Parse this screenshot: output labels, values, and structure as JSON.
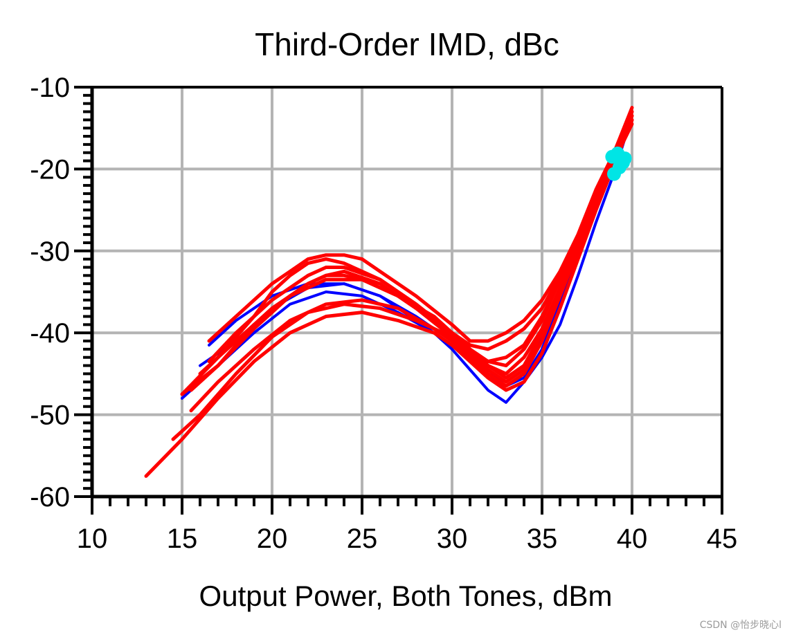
{
  "chart_data": {
    "type": "line",
    "title": "Third-Order IMD, dBc",
    "xlabel": "Output Power, Both Tones, dBm",
    "ylabel": "",
    "xlim": [
      10,
      45
    ],
    "ylim": [
      -60,
      -10
    ],
    "xticks": [
      10,
      15,
      20,
      25,
      30,
      35,
      40,
      45
    ],
    "yticks": [
      -60,
      -50,
      -40,
      -30,
      -20,
      -10
    ],
    "xtick_labels": [
      "10",
      "15",
      "20",
      "25",
      "30",
      "35",
      "40",
      "45"
    ],
    "ytick_labels": [
      "-60",
      "-50",
      "-40",
      "-30",
      "-20",
      "-10"
    ],
    "grid": true,
    "colors": {
      "blue_series": "#0000ff",
      "red_series": "#ff0000",
      "marker": "#00e5e5",
      "grid": "#b4b4b4"
    },
    "series": [
      {
        "color": "blue",
        "points": [
          [
            16.5,
            -41.5
          ],
          [
            18,
            -38.5
          ],
          [
            20,
            -35.5
          ],
          [
            22,
            -34
          ],
          [
            24,
            -34
          ],
          [
            26,
            -35.5
          ],
          [
            28,
            -38.5
          ],
          [
            30,
            -41.5
          ],
          [
            31,
            -43.5
          ],
          [
            32,
            -45.5
          ],
          [
            33,
            -46.5
          ],
          [
            34,
            -45.5
          ],
          [
            35,
            -42
          ],
          [
            36,
            -36
          ],
          [
            37,
            -30
          ],
          [
            38,
            -24
          ],
          [
            39,
            -19
          ],
          [
            40,
            -13
          ]
        ]
      },
      {
        "color": "blue",
        "points": [
          [
            15,
            -48
          ],
          [
            17,
            -44
          ],
          [
            19,
            -40
          ],
          [
            21,
            -36.5
          ],
          [
            23,
            -35
          ],
          [
            25,
            -35.5
          ],
          [
            27,
            -37.5
          ],
          [
            29,
            -40
          ],
          [
            30,
            -42
          ],
          [
            31,
            -44.5
          ],
          [
            32,
            -47
          ],
          [
            33,
            -48.5
          ],
          [
            34,
            -46
          ],
          [
            35,
            -43
          ],
          [
            36,
            -39
          ],
          [
            37,
            -33
          ],
          [
            38,
            -26.5
          ],
          [
            39,
            -20.5
          ],
          [
            40,
            -13.5
          ]
        ]
      },
      {
        "color": "blue",
        "points": [
          [
            16,
            -44
          ],
          [
            18,
            -41
          ],
          [
            20,
            -37
          ],
          [
            22,
            -34.5
          ],
          [
            24,
            -34
          ],
          [
            26,
            -35.5
          ],
          [
            28,
            -38
          ],
          [
            30,
            -41
          ],
          [
            31,
            -43
          ],
          [
            32,
            -45
          ],
          [
            33,
            -46
          ],
          [
            34,
            -44.5
          ],
          [
            35,
            -40.5
          ],
          [
            36,
            -35
          ],
          [
            37,
            -29
          ],
          [
            38,
            -23.5
          ],
          [
            39,
            -18.5
          ],
          [
            40,
            -13
          ]
        ]
      },
      {
        "color": "red",
        "points": [
          [
            16.5,
            -41
          ],
          [
            18,
            -38
          ],
          [
            20,
            -34
          ],
          [
            21,
            -32.5
          ],
          [
            22,
            -31
          ],
          [
            23,
            -30.5
          ],
          [
            24,
            -30.5
          ],
          [
            25,
            -31
          ],
          [
            26,
            -32.5
          ],
          [
            28,
            -35.5
          ],
          [
            30,
            -39
          ],
          [
            31,
            -41
          ],
          [
            32,
            -41
          ],
          [
            33,
            -40
          ],
          [
            34,
            -38.5
          ],
          [
            35,
            -36
          ],
          [
            36,
            -32.5
          ],
          [
            37,
            -28
          ],
          [
            38,
            -22.5
          ],
          [
            39,
            -18
          ],
          [
            40,
            -13
          ]
        ]
      },
      {
        "color": "red",
        "points": [
          [
            15,
            -47.5
          ],
          [
            17,
            -43
          ],
          [
            19,
            -38
          ],
          [
            20,
            -35
          ],
          [
            21,
            -33
          ],
          [
            22,
            -31.5
          ],
          [
            23,
            -31
          ],
          [
            24,
            -31.5
          ],
          [
            26,
            -33.5
          ],
          [
            28,
            -36.5
          ],
          [
            30,
            -40
          ],
          [
            31,
            -41.5
          ],
          [
            32,
            -42
          ],
          [
            33,
            -41
          ],
          [
            34,
            -39.5
          ],
          [
            35,
            -37
          ],
          [
            36,
            -33
          ],
          [
            37,
            -28.5
          ],
          [
            38,
            -23
          ],
          [
            39,
            -18
          ],
          [
            40,
            -12.5
          ]
        ]
      },
      {
        "color": "red",
        "points": [
          [
            15.5,
            -47
          ],
          [
            17,
            -44
          ],
          [
            19,
            -39.5
          ],
          [
            21,
            -35.5
          ],
          [
            22,
            -34
          ],
          [
            23,
            -33
          ],
          [
            24,
            -33
          ],
          [
            25,
            -33.5
          ],
          [
            27,
            -35.5
          ],
          [
            29,
            -38.5
          ],
          [
            30,
            -40.5
          ],
          [
            31,
            -42.5
          ],
          [
            32,
            -43.5
          ],
          [
            33,
            -43
          ],
          [
            34,
            -41.5
          ],
          [
            35,
            -38
          ],
          [
            36,
            -33.5
          ],
          [
            37,
            -28.5
          ],
          [
            38,
            -23
          ],
          [
            39,
            -18.5
          ],
          [
            40,
            -13.5
          ]
        ]
      },
      {
        "color": "red",
        "points": [
          [
            16,
            -45
          ],
          [
            18,
            -41
          ],
          [
            20,
            -37
          ],
          [
            22,
            -34
          ],
          [
            23,
            -33
          ],
          [
            24,
            -32.5
          ],
          [
            26,
            -34
          ],
          [
            28,
            -37
          ],
          [
            30,
            -40.5
          ],
          [
            31,
            -42.5
          ],
          [
            32,
            -44
          ],
          [
            33,
            -45
          ],
          [
            34,
            -43
          ],
          [
            35,
            -39.5
          ],
          [
            36,
            -34.5
          ],
          [
            37,
            -29
          ],
          [
            38,
            -23.5
          ],
          [
            39,
            -19
          ],
          [
            40,
            -14
          ]
        ]
      },
      {
        "color": "red",
        "points": [
          [
            14.5,
            -53
          ],
          [
            16,
            -50
          ],
          [
            18,
            -45
          ],
          [
            20,
            -40.5
          ],
          [
            22,
            -37.5
          ],
          [
            24,
            -36.5
          ],
          [
            26,
            -37
          ],
          [
            28,
            -38.5
          ],
          [
            30,
            -40.5
          ],
          [
            31,
            -42.5
          ],
          [
            32,
            -44.5
          ],
          [
            33,
            -46
          ],
          [
            34,
            -44.5
          ],
          [
            35,
            -40
          ],
          [
            36,
            -35
          ],
          [
            37,
            -29
          ],
          [
            38,
            -23.5
          ],
          [
            39,
            -19
          ],
          [
            40,
            -14.5
          ]
        ]
      },
      {
        "color": "red",
        "points": [
          [
            13,
            -57.5
          ],
          [
            15,
            -53
          ],
          [
            17,
            -48
          ],
          [
            19,
            -43.5
          ],
          [
            21,
            -40
          ],
          [
            23,
            -38
          ],
          [
            25,
            -37.5
          ],
          [
            27,
            -38.5
          ],
          [
            29,
            -40
          ],
          [
            30,
            -41.5
          ],
          [
            31,
            -43.5
          ],
          [
            32,
            -45.5
          ],
          [
            33,
            -47
          ],
          [
            34,
            -46
          ],
          [
            35,
            -42.5
          ],
          [
            36,
            -37
          ],
          [
            37,
            -31
          ],
          [
            38,
            -25
          ],
          [
            39,
            -19.5
          ],
          [
            40,
            -14
          ]
        ]
      },
      {
        "color": "red",
        "points": [
          [
            15.5,
            -49.5
          ],
          [
            17,
            -46
          ],
          [
            19,
            -42
          ],
          [
            21,
            -38.5
          ],
          [
            23,
            -36.5
          ],
          [
            25,
            -36
          ],
          [
            27,
            -37
          ],
          [
            29,
            -39.5
          ],
          [
            30,
            -41
          ],
          [
            31,
            -43
          ],
          [
            32,
            -45
          ],
          [
            33,
            -46.5
          ],
          [
            34,
            -45
          ],
          [
            35,
            -41
          ],
          [
            36,
            -35.5
          ],
          [
            37,
            -30
          ],
          [
            38,
            -24
          ],
          [
            39,
            -19.5
          ],
          [
            40,
            -14
          ]
        ]
      },
      {
        "color": "red",
        "points": [
          [
            15,
            -47.5
          ],
          [
            17,
            -44
          ],
          [
            19,
            -39
          ],
          [
            21,
            -35.5
          ],
          [
            23,
            -33.5
          ],
          [
            25,
            -33.5
          ],
          [
            27,
            -35.5
          ],
          [
            29,
            -38
          ],
          [
            30,
            -40
          ],
          [
            31,
            -42
          ],
          [
            32,
            -44
          ],
          [
            33,
            -45.5
          ],
          [
            34,
            -44
          ],
          [
            35,
            -40
          ],
          [
            36,
            -34.5
          ],
          [
            37,
            -29
          ],
          [
            38,
            -23.5
          ],
          [
            39,
            -19
          ],
          [
            40,
            -13.5
          ]
        ]
      },
      {
        "color": "red",
        "points": [
          [
            16.5,
            -43.5
          ],
          [
            18,
            -40
          ],
          [
            20,
            -36
          ],
          [
            22,
            -33
          ],
          [
            23,
            -32
          ],
          [
            24,
            -32
          ],
          [
            26,
            -33.5
          ],
          [
            28,
            -36.5
          ],
          [
            30,
            -40
          ],
          [
            31,
            -42
          ],
          [
            32,
            -43.5
          ],
          [
            33,
            -44
          ],
          [
            34,
            -42
          ],
          [
            35,
            -38.5
          ],
          [
            36,
            -33.5
          ],
          [
            37,
            -28.5
          ],
          [
            38,
            -23
          ],
          [
            39,
            -18.5
          ],
          [
            40,
            -13
          ]
        ]
      }
    ],
    "markers": [
      {
        "x": 38.9,
        "y": -18.5
      },
      {
        "x": 39.2,
        "y": -18.1
      },
      {
        "x": 39.6,
        "y": -18.7
      },
      {
        "x": 39.3,
        "y": -19.8
      },
      {
        "x": 39.0,
        "y": -20.6
      },
      {
        "x": 39.5,
        "y": -19.2
      }
    ]
  },
  "watermark": "CSDN @怡步晓心l"
}
